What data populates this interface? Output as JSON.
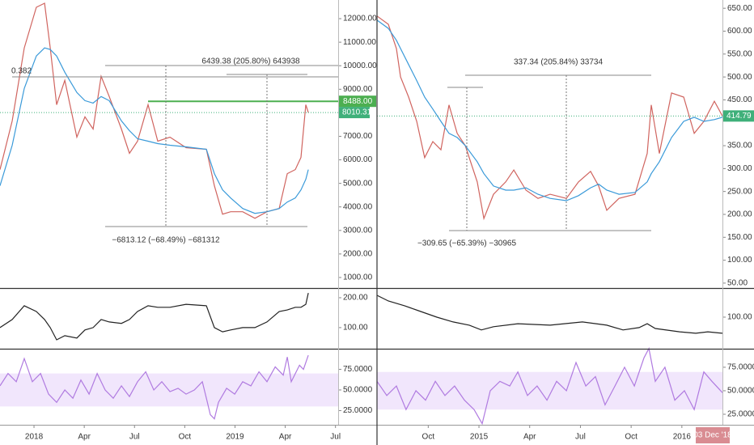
{
  "chart_data": [
    {
      "type": "line",
      "x": [
        -2.03,
        -1.3,
        -0.58,
        0.14,
        0.63,
        0.97,
        1.35,
        1.84,
        2.56,
        3.04,
        3.53,
        4.01,
        4.49,
        5.22,
        5.7,
        6.18,
        6.81,
        7.39,
        8.12,
        9.08,
        10.29,
        10.77,
        11.26,
        11.74,
        12.46,
        13.19,
        13.91,
        14.64,
        15.12,
        15.6,
        15.94,
        16.23,
        16.38
      ],
      "series": [
        {
          "color": "#d0645f",
          "values": [
            5586,
            7655,
            10758,
            12482,
            12655,
            10758,
            8345,
            9379,
            6966,
            7827,
            7310,
            9551,
            8690,
            7310,
            6276,
            6793,
            8345,
            6793,
            6966,
            6517,
            6448,
            4897,
            3690,
            3793,
            3793,
            3517,
            3793,
            3931,
            5413,
            5586,
            6103,
            8345,
            8010.31
          ]
        },
        {
          "color": "#3a9ad9",
          "values": [
            4897,
            6620,
            9034,
            10413,
            10758,
            10689,
            10413,
            9724,
            8862,
            8517,
            8413,
            8690,
            8517,
            7655,
            7241,
            6896,
            6793,
            6689,
            6620,
            6551,
            6448,
            5413,
            4724,
            4379,
            3931,
            3724,
            3793,
            3931,
            4207,
            4379,
            4724,
            5172,
            5586
          ]
        }
      ],
      "xlim": [
        -2.03,
        18.16
      ],
      "ylim": [
        586,
        12793
      ],
      "yticks": [
        {
          "value": 1000,
          "label": "1000.00"
        },
        {
          "value": 2000,
          "label": "2000.00"
        },
        {
          "value": 3000,
          "label": "3000.00"
        },
        {
          "value": 4000,
          "label": "4000.00"
        },
        {
          "value": 5000,
          "label": "5000.00"
        },
        {
          "value": 6000,
          "label": "6000.00"
        },
        {
          "value": 7000,
          "label": "7000.00"
        },
        {
          "value": 9000,
          "label": "9000.00"
        },
        {
          "value": 10000,
          "label": "10000.00"
        },
        {
          "value": 11000,
          "label": "11000.00"
        },
        {
          "value": 12000,
          "label": "12000.00"
        }
      ],
      "hlines": [
        {
          "value": 8488,
          "label": "8488.00",
          "color": "#4caf50",
          "from": 6.81
        }
      ],
      "last_price": {
        "value": 8010.31,
        "color": "#3fb07a"
      },
      "annotations": [
        "0.382",
        "6439.38 (205.80%) 643938",
        "−6813.12 (−68.49%) −681312"
      ]
    },
    {
      "type": "line",
      "x": [
        -2.03,
        -1.3,
        -0.58,
        0.14,
        0.63,
        0.97,
        1.35,
        1.84,
        2.56,
        3.04,
        3.53,
        4.01,
        4.49,
        5.22,
        5.7,
        6.18,
        6.81,
        7.39,
        8.12,
        9.08,
        10.29,
        10.77,
        11.26,
        11.74,
        12.46,
        13.19,
        13.91,
        14.64,
        15.12,
        15.6,
        15.94,
        16.23,
        16.38
      ],
      "series": [
        {
          "color": "#222222",
          "values": [
            100,
            127,
            173,
            154,
            127,
            100,
            59,
            73,
            65,
            92,
            100,
            127,
            119,
            114,
            127,
            154,
            173,
            168,
            168,
            178,
            173,
            100,
            86,
            92,
            100,
            100,
            119,
            154,
            159,
            168,
            168,
            178,
            216
          ]
        }
      ],
      "xlim": [
        -2.03,
        18.16
      ],
      "ylim": [
        32,
        227
      ],
      "yticks": [
        {
          "value": 100,
          "label": "100.00"
        },
        {
          "value": 200,
          "label": "200.00"
        }
      ]
    },
    {
      "type": "line",
      "x": [
        -2.03,
        -1.55,
        -1.06,
        -0.58,
        -0.1,
        0.39,
        0.87,
        1.35,
        1.84,
        2.32,
        2.8,
        3.29,
        3.77,
        4.25,
        4.73,
        5.22,
        5.7,
        6.18,
        6.67,
        7.15,
        7.63,
        8.12,
        8.6,
        9.08,
        9.57,
        10.05,
        10.29,
        10.53,
        10.77,
        11.01,
        11.5,
        11.98,
        12.46,
        12.95,
        13.43,
        13.91,
        14.4,
        14.88,
        15.12,
        15.36,
        15.85,
        16.09,
        16.38
      ],
      "series": [
        {
          "color": "#b07be0",
          "values": [
            55,
            70,
            60,
            88,
            60,
            70,
            45,
            35,
            50,
            40,
            62,
            45,
            70,
            50,
            40,
            55,
            42,
            60,
            72,
            50,
            60,
            48,
            52,
            45,
            50,
            60,
            40,
            20,
            15,
            35,
            52,
            45,
            60,
            55,
            72,
            60,
            78,
            68,
            90,
            60,
            80,
            75,
            92
          ]
        }
      ],
      "xlim": [
        -2.03,
        18.16
      ],
      "ylim": [
        7.8,
        98
      ],
      "yticks": [
        {
          "value": 25,
          "label": "25.0000"
        },
        {
          "value": 50,
          "label": "50.0000"
        },
        {
          "value": 75,
          "label": "75.0000"
        }
      ],
      "band": [
        30,
        70
      ],
      "xticks": [
        {
          "value": 0,
          "label": "2018"
        },
        {
          "value": 3,
          "label": "Apr"
        },
        {
          "value": 6,
          "label": "Jul"
        },
        {
          "value": 9,
          "label": "Oct"
        },
        {
          "value": 12,
          "label": "2019"
        },
        {
          "value": 15,
          "label": "Apr"
        },
        {
          "value": 18,
          "label": "Jul"
        }
      ]
    },
    {
      "type": "line",
      "x": [
        -6.03,
        -5.36,
        -4.88,
        -4.64,
        -4.16,
        -3.68,
        -3.21,
        -2.73,
        -2.25,
        -1.77,
        -1.29,
        -0.81,
        -0.1,
        0.29,
        0.86,
        1.58,
        2.06,
        2.78,
        3.49,
        4.21,
        5.17,
        5.89,
        6.6,
        7.08,
        7.56,
        8.28,
        9.23,
        9.95,
        10.19,
        10.67,
        11.39,
        12.11,
        12.73,
        13.3,
        13.92,
        14.4
      ],
      "series": [
        {
          "color": "#d0645f",
          "values": [
            633,
            615,
            562,
            500,
            456,
            403,
            324,
            359,
            341,
            439,
            377,
            350,
            271,
            191,
            244,
            271,
            297,
            253,
            235,
            244,
            235,
            271,
            294,
            262,
            209,
            235,
            244,
            333,
            439,
            333,
            465,
            456,
            377,
            403,
            447,
            414.79
          ]
        },
        {
          "color": "#3a9ad9",
          "values": [
            624,
            606,
            580,
            562,
            527,
            492,
            456,
            430,
            403,
            377,
            368,
            350,
            315,
            289,
            262,
            253,
            253,
            258,
            244,
            235,
            230,
            241,
            258,
            266,
            253,
            244,
            248,
            271,
            289,
            315,
            368,
            403,
            412,
            403,
            407,
            412
          ]
        }
      ],
      "xlim": [
        -6.03,
        14.4
      ],
      "ylim": [
        41,
        668
      ],
      "yticks": [
        {
          "value": 50,
          "label": "50.00"
        },
        {
          "value": 100,
          "label": "100.00"
        },
        {
          "value": 150,
          "label": "150.00"
        },
        {
          "value": 200,
          "label": "200.00"
        },
        {
          "value": 250,
          "label": "250.00"
        },
        {
          "value": 300,
          "label": "300.00"
        },
        {
          "value": 350,
          "label": "350.00"
        },
        {
          "value": 450,
          "label": "450.00"
        },
        {
          "value": 500,
          "label": "500.00"
        },
        {
          "value": 550,
          "label": "550.00"
        },
        {
          "value": 600,
          "label": "600.00"
        },
        {
          "value": 650,
          "label": "650.00"
        }
      ],
      "last_price": {
        "value": 414.79,
        "color": "#3fb07a"
      },
      "annotations": [
        "337.34 (205.84%) 33734",
        "−309.65 (−65.39%) −30965"
      ]
    },
    {
      "type": "line",
      "x": [
        -6.03,
        -5.36,
        -4.4,
        -3.44,
        -2.49,
        -1.53,
        -0.57,
        0.14,
        0.86,
        2.3,
        4.21,
        6.12,
        7.56,
        8.52,
        9.47,
        9.95,
        10.43,
        11.87,
        12.82,
        13.54,
        14.4
      ],
      "series": [
        {
          "color": "#222222",
          "values": [
            173,
            154,
            138,
            119,
            100,
            84,
            73,
            57,
            68,
            78,
            73,
            84,
            73,
            57,
            65,
            78,
            62,
            51,
            46,
            51,
            46
          ]
        }
      ],
      "xlim": [
        -6.03,
        14.4
      ],
      "ylim": [
        -3,
        192
      ],
      "yticks": [
        {
          "value": 100,
          "label": "100.00"
        }
      ]
    },
    {
      "type": "line",
      "x": [
        -6.03,
        -5.45,
        -4.88,
        -4.31,
        -3.73,
        -3.16,
        -2.58,
        -2.01,
        -1.44,
        -0.86,
        -0.29,
        0.19,
        0.67,
        1.24,
        1.82,
        2.3,
        2.87,
        3.44,
        4.02,
        4.59,
        5.17,
        5.74,
        6.32,
        6.89,
        7.46,
        8.04,
        8.61,
        9.19,
        9.76,
        10.05,
        10.43,
        11.0,
        11.58,
        12.15,
        12.73,
        13.3,
        13.78,
        14.4
      ],
      "series": [
        {
          "color": "#b07be0",
          "values": [
            60,
            45,
            55,
            30,
            50,
            40,
            60,
            45,
            55,
            40,
            30,
            15,
            50,
            60,
            55,
            70,
            45,
            55,
            40,
            60,
            50,
            80,
            55,
            65,
            35,
            55,
            75,
            55,
            85,
            95,
            60,
            75,
            40,
            50,
            30,
            70,
            60,
            48
          ]
        }
      ],
      "xlim": [
        -6.03,
        14.4
      ],
      "ylim": [
        13.8,
        93
      ],
      "yticks": [
        {
          "value": 25,
          "label": "25.0000"
        },
        {
          "value": 50,
          "label": "50.0000"
        },
        {
          "value": 75,
          "label": "75.0000"
        }
      ],
      "band": [
        30,
        70
      ],
      "xticks": [
        {
          "value": -3,
          "label": "Oct"
        },
        {
          "value": 0,
          "label": "2015"
        },
        {
          "value": 3,
          "label": "Apr"
        },
        {
          "value": 6,
          "label": "Jul"
        },
        {
          "value": 9,
          "label": "Oct"
        },
        {
          "value": 12,
          "label": "2016"
        }
      ],
      "crosshair_label": "03 Dec '18"
    }
  ]
}
